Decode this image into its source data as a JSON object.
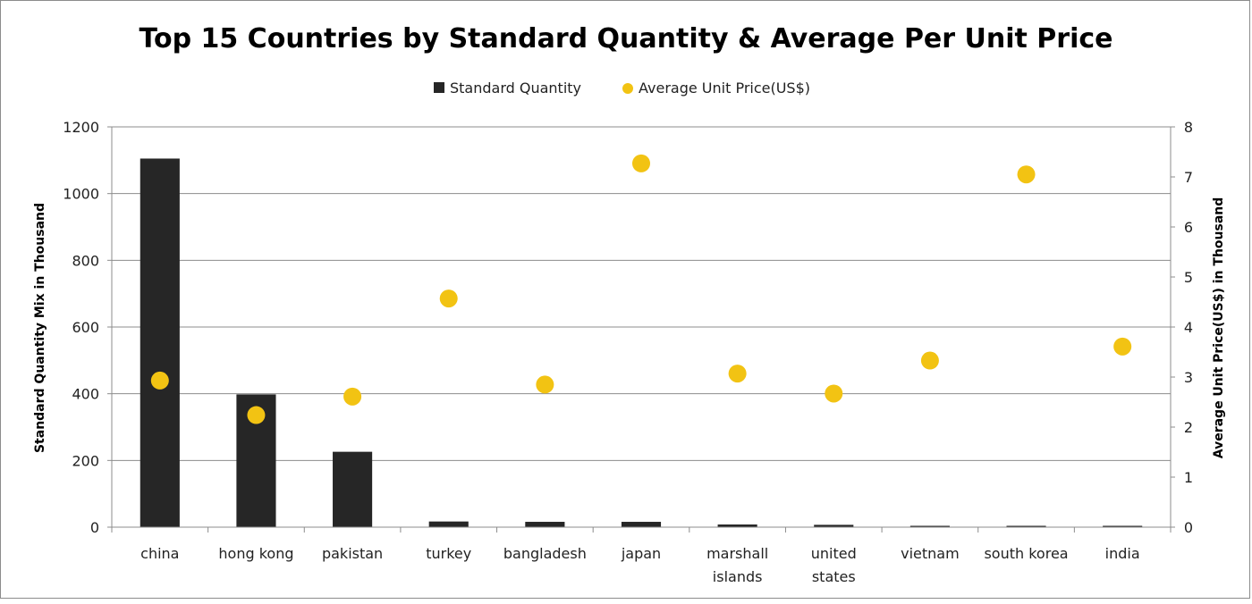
{
  "chart_data": {
    "type": "bar",
    "title": "Top 15 Countries by Standard Quantity & Average Per Unit Price",
    "categories": [
      [
        "china"
      ],
      [
        "hong kong"
      ],
      [
        "pakistan"
      ],
      [
        "turkey"
      ],
      [
        "bangladesh"
      ],
      [
        "japan"
      ],
      [
        "marshall",
        "islands"
      ],
      [
        "united",
        "states"
      ],
      [
        "vietnam"
      ],
      [
        "south korea"
      ],
      [
        "india"
      ]
    ],
    "series": [
      {
        "name": "Standard Quantity",
        "type": "bar",
        "axis": "left",
        "color": "#262626",
        "values": [
          1105,
          398,
          226,
          17,
          16,
          16,
          8,
          7,
          4,
          4,
          4
        ]
      },
      {
        "name": "Average Unit Price(US$)",
        "type": "scatter",
        "axis": "right",
        "color": "#f2c313",
        "values": [
          2.93,
          2.24,
          2.61,
          4.57,
          2.85,
          7.27,
          3.07,
          2.67,
          3.33,
          7.05,
          3.61
        ]
      }
    ],
    "y_left": {
      "label": "Standard Quantity Mix in Thousand",
      "range": [
        0,
        1200
      ],
      "ticks": [
        "0",
        "200",
        "400",
        "600",
        "800",
        "1000",
        "1200"
      ]
    },
    "y_right": {
      "label": "Average Unit Price(US$) in Thousand",
      "range": [
        0,
        8
      ],
      "ticks": [
        "0",
        "1",
        "2",
        "3",
        "4",
        "5",
        "6",
        "7",
        "8"
      ]
    },
    "grid": true,
    "legend_position": "top"
  }
}
